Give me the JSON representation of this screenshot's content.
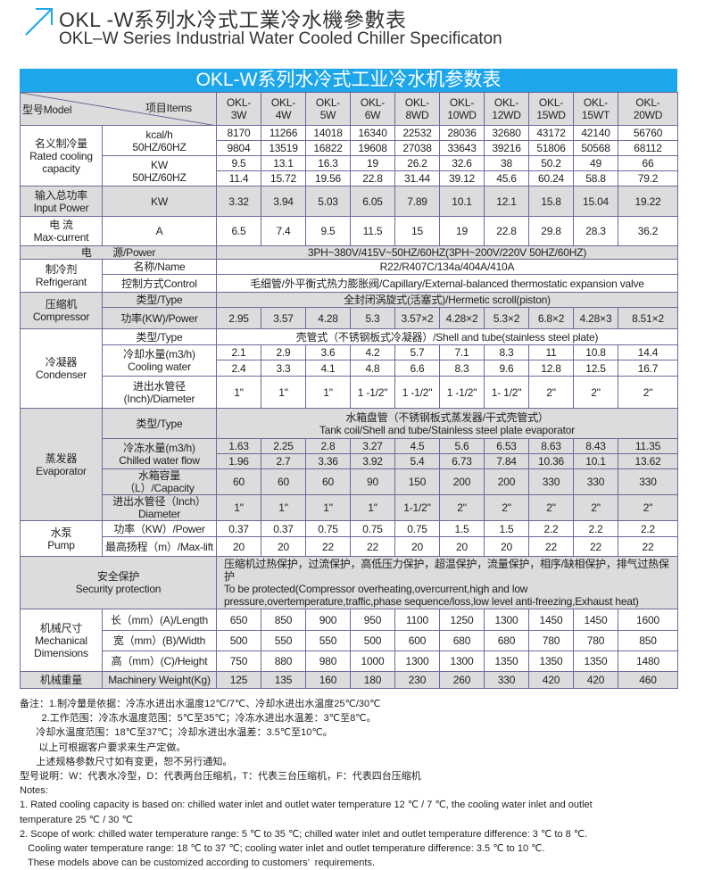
{
  "title": {
    "cn": "OKL -W系列水冷式工業冷水機參數表",
    "en": "OKL–W Series Industrial Water Cooled Chiller Specificaton",
    "accent": "#1ea6ea"
  },
  "table": {
    "banner": "OKL-W系列水冷式工业冷水机参数表",
    "model_label": "型号Model",
    "items_label": "项目Items",
    "models": [
      "OKL-\n3W",
      "OKL-\n4W",
      "OKL-\n5W",
      "OKL-\n6W",
      "OKL-\n8WD",
      "OKL-\n10WD",
      "OKL-\n12WD",
      "OKL-\n15WD",
      "OKL-\n15WT",
      "OKL-\n20WD"
    ],
    "cooling": {
      "group": "名义制冷量\nRated cooling\ncapacity",
      "kcal_label": "kcal/h\n50HZ/60HZ",
      "kcal_50": [
        "8170",
        "11266",
        "14018",
        "16340",
        "22532",
        "28036",
        "32680",
        "43172",
        "42140",
        "56760"
      ],
      "kcal_60": [
        "9804",
        "13519",
        "16822",
        "19608",
        "27038",
        "33643",
        "39216",
        "51806",
        "50568",
        "68112"
      ],
      "kw_label": "KW\n50HZ/60HZ",
      "kw_50": [
        "9.5",
        "13.1",
        "16.3",
        "19",
        "26.2",
        "32.6",
        "38",
        "50.2",
        "49",
        "66"
      ],
      "kw_60": [
        "11.4",
        "15.72",
        "19.56",
        "22.8",
        "31.44",
        "39.12",
        "45.6",
        "60.24",
        "58.8",
        "79.2"
      ]
    },
    "input": {
      "group": "输入总功率\nInput Power",
      "unit": "KW",
      "values": [
        "3.32",
        "3.94",
        "5.03",
        "6.05",
        "7.89",
        "10.1",
        "12.1",
        "15.8",
        "15.04",
        "19.22"
      ]
    },
    "current": {
      "group": "电 流\nMax-current",
      "unit": "A",
      "values": [
        "6.5",
        "7.4",
        "9.5",
        "11.5",
        "15",
        "19",
        "22.8",
        "29.8",
        "28.3",
        "36.2"
      ]
    },
    "power": {
      "label": "电　　源/Power",
      "value": "3PH~380V/415V~50HZ/60HZ(3PH~200V/220V  50HZ/60HZ)"
    },
    "refrigerant": {
      "group": "制冷剂\nRefrigerant",
      "name_label": "名称/Name",
      "name": "R22/R407C/134a/404A/410A",
      "control_label": "控制方式Control",
      "control": "毛细管/外平衡式热力膨胀阀/Capillary/External-balanced thermostatic expansion valve"
    },
    "compressor": {
      "group": "压缩机\nCompressor",
      "type_label": "类型/Type",
      "type": "全封闭涡旋式(活塞式)/Hermetic scroll(piston)",
      "power_label": "功率(KW)/Power",
      "power": [
        "2.95",
        "3.57",
        "4.28",
        "5.3",
        "3.57×2",
        "4.28×2",
        "5.3×2",
        "6.8×2",
        "4.28×3",
        "8.51×2"
      ]
    },
    "condenser": {
      "group": "冷凝器\nCondenser",
      "type_label": "类型/Type",
      "type": "壳管式（不锈钢板式冷凝器）/Shell and tube(stainless steel plate)",
      "water_label": "冷却水量(m3/h)\nCooling water",
      "water_min": [
        "2.1",
        "2.9",
        "3.6",
        "4.2",
        "5.7",
        "7.1",
        "8.3",
        "11",
        "10.8",
        "14.4"
      ],
      "water_max": [
        "2.4",
        "3.3",
        "4.1",
        "4.8",
        "6.6",
        "8.3",
        "9.6",
        "12.8",
        "12.5",
        "16.7"
      ],
      "diameter_label": "进出水管径\n(Inch)/Diameter",
      "diameter": [
        "1\"",
        "1\"",
        "1\"",
        "1 -1/2\"",
        "1 -1/2\"",
        "1 -1/2\"",
        "1- 1/2\"",
        "2\"",
        "2\"",
        "2\""
      ]
    },
    "evaporator": {
      "group": "蒸发器\nEvaporator",
      "type_label": "类型/Type",
      "type": "水箱盘管（不锈钢板式蒸发器/干式壳管式）\nTank coil/Shell and tube/Stainless steel plate evaporator",
      "water_label": "冷冻水量(m3/h)\nChilled water flow",
      "water_min": [
        "1.63",
        "2.25",
        "2.8",
        "3.27",
        "4.5",
        "5.6",
        "6.53",
        "8.63",
        "8.43",
        "11.35"
      ],
      "water_max": [
        "1.96",
        "2.7",
        "3.36",
        "3.92",
        "5.4",
        "6.73",
        "7.84",
        "10.36",
        "10.1",
        "13.62"
      ],
      "capacity_label": "水箱容量（L）/Capacity",
      "capacity": [
        "60",
        "60",
        "60",
        "90",
        "150",
        "200",
        "200",
        "330",
        "330",
        "330"
      ],
      "diameter_label": "进出水管径（Inch）\nDiameter",
      "diameter": [
        "1\"",
        "1\"",
        "1\"",
        "1\"",
        "1-1/2\"",
        "2\"",
        "2\"",
        "2\"",
        "2\"",
        "2\""
      ]
    },
    "pump": {
      "group": "水泵\nPump",
      "power_label": "功率（KW）/Power",
      "power": [
        "0.37",
        "0.37",
        "0.75",
        "0.75",
        "0.75",
        "1.5",
        "1.5",
        "2.2",
        "2.2",
        "2.2"
      ],
      "lift_label": "最高扬程（m）/Max-lift",
      "lift": [
        "20",
        "20",
        "22",
        "22",
        "20",
        "20",
        "20",
        "22",
        "22",
        "22"
      ]
    },
    "security": {
      "group": "安全保护\nSecurity protection",
      "text": "压缩机过热保护，过流保护，高低压力保护，超温保护，流量保护，相序/缺相保护，排气过热保护\nTo be protected(Compressor overheating,overcurrent,high and low\npressure,overtemperature,traffic,phase sequence/loss,low level anti-freezing,Exhaust heat)"
    },
    "mechanical": {
      "group": "机械尺寸\nMechanical\nDimensions",
      "length_label": "长（mm）(A)/Length",
      "length": [
        "650",
        "850",
        "900",
        "950",
        "1100",
        "1250",
        "1300",
        "1450",
        "1450",
        "1600"
      ],
      "width_label": "宽（mm）(B)/Width",
      "width": [
        "500",
        "550",
        "550",
        "500",
        "600",
        "680",
        "680",
        "780",
        "780",
        "850"
      ],
      "height_label": "高（mm）(C)/Height",
      "height": [
        "750",
        "880",
        "980",
        "1000",
        "1300",
        "1300",
        "1350",
        "1350",
        "1350",
        "1480"
      ]
    },
    "weight": {
      "group": "机械重量",
      "label": "Machinery Weight(Kg)",
      "values": [
        "125",
        "135",
        "160",
        "180",
        "230",
        "260",
        "330",
        "420",
        "420",
        "460"
      ]
    }
  },
  "notes": [
    "备注：1.制冷量是依据：冷冻水进出水温度12℃/7℃、冷却水进出水温度25℃/30℃",
    "        2.工作范围：冷冻水温度范围：5℃至35℃；冷冻水进出水温差：3℃至8℃。",
    "      冷却水温度范围：18℃至37℃；冷却水进出水温差：3.5℃至10℃。",
    "       以上可根据客户要求来生产定做。",
    "      上述规格参数尺寸如有变更，恕不另行通知。",
    "型号说明：W：代表水冷型，D：代表两台压缩机，T：代表三台压缩机，F：代表四台压缩机",
    "Notes:",
    "1. Rated cooling capacity is based on: chilled water inlet and outlet water temperature 12 ℃ / 7 ℃, the cooling water inlet and outlet",
    "temperature 25 ℃ / 30 ℃",
    "2. Scope of work: chilled water temperature range: 5 ℃ to 35 ℃; chilled water inlet and outlet temperature difference: 3 ℃ to 8 ℃.",
    "   Cooling water temperature range: 18 ℃ to 37 ℃; cooling water inlet and outlet temperature difference: 3.5 ℃ to 10 ℃.",
    "   These models above can be customized according to customers’  requirements."
  ]
}
